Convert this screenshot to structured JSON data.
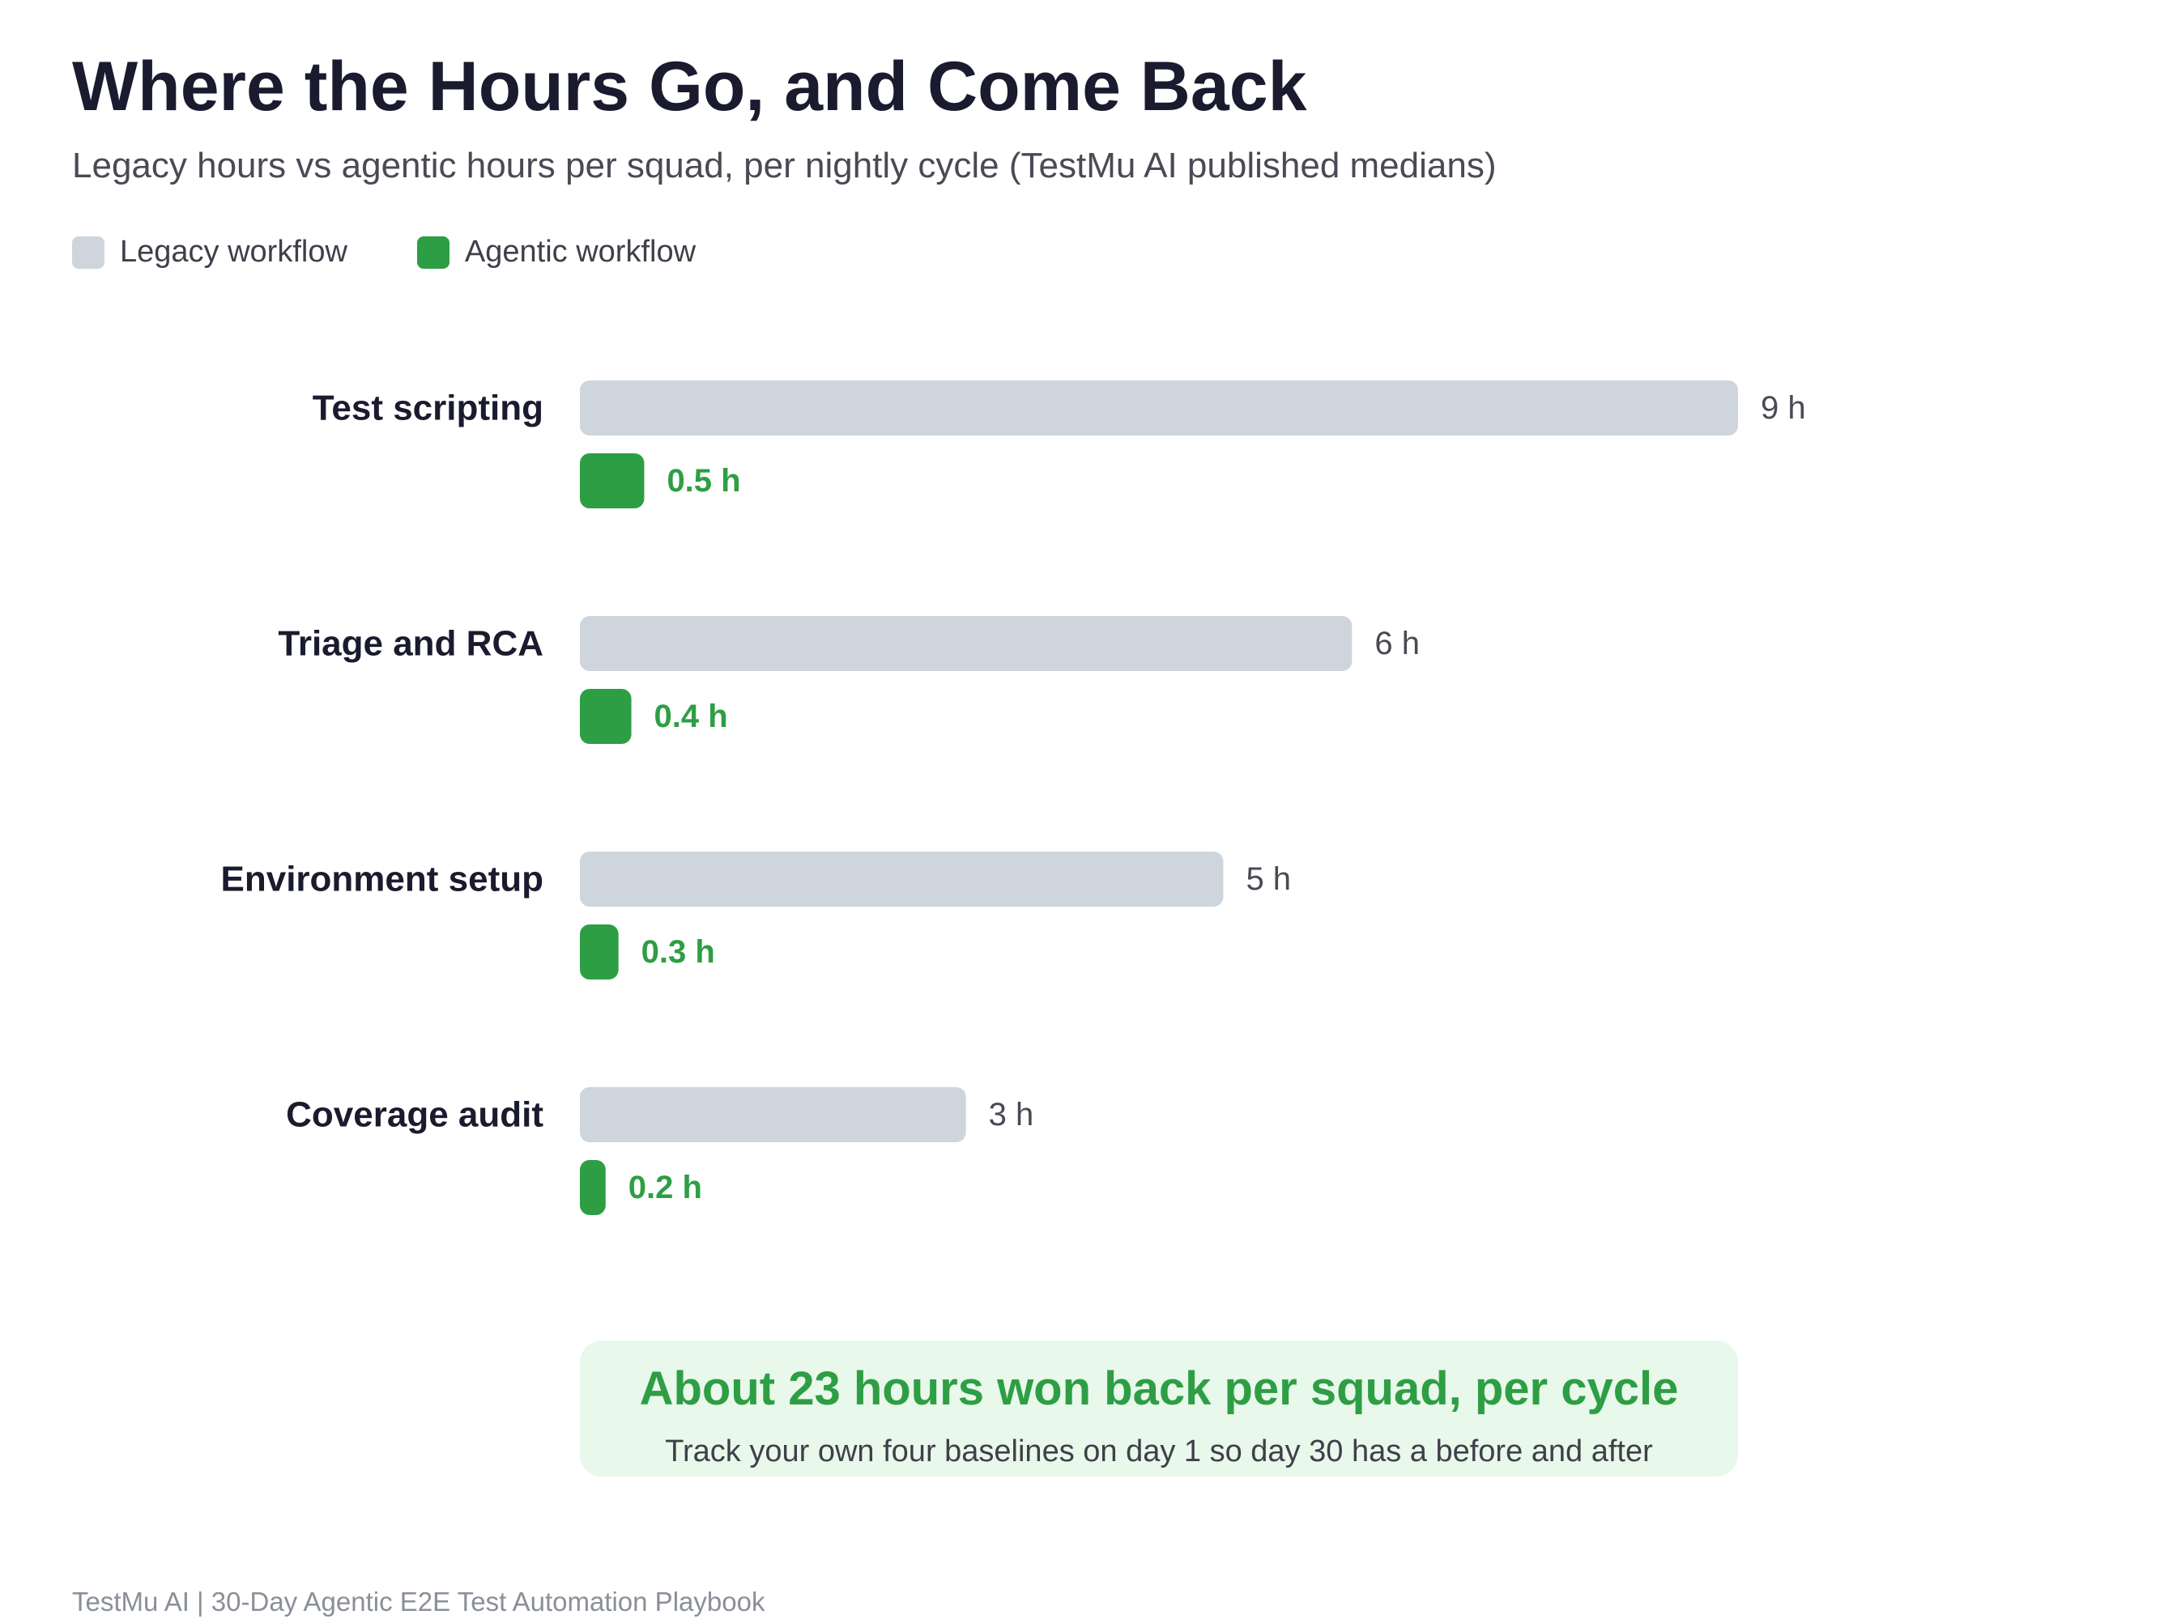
{
  "title": "Where the Hours Go, and Come Back",
  "subtitle": "Legacy hours vs agentic hours per squad, per nightly cycle (TestMu AI published medians)",
  "colors": {
    "legacy": "#cfd5dd",
    "agentic": "#2e9e45",
    "callout_bg": "#e8f8ea"
  },
  "chart_data": {
    "type": "bar",
    "orientation": "horizontal",
    "categories": [
      "Test scripting",
      "Triage and RCA",
      "Environment setup",
      "Coverage audit"
    ],
    "series": [
      {
        "name": "Legacy workflow",
        "values": [
          9,
          6,
          5,
          3
        ],
        "labels": [
          "9 h",
          "6 h",
          "5 h",
          "3 h"
        ]
      },
      {
        "name": "Agentic workflow",
        "values": [
          0.5,
          0.4,
          0.3,
          0.2
        ],
        "labels": [
          "0.5 h",
          "0.4 h",
          "0.3 h",
          "0.2 h"
        ]
      }
    ],
    "xlim": [
      0,
      9
    ],
    "grid": false,
    "legend_position": "top-left"
  },
  "callout": {
    "headline": "About 23 hours won back per squad, per cycle",
    "note": "Track your own four baselines on day 1 so day 30 has a before and after"
  },
  "footer": "TestMu AI | 30-Day Agentic E2E Test Automation Playbook"
}
